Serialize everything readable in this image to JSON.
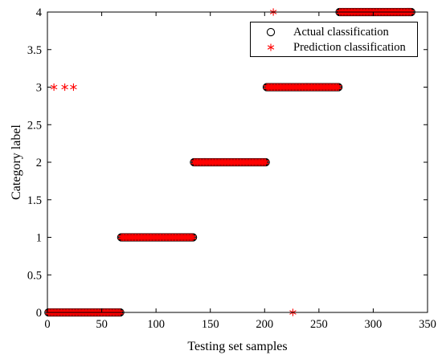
{
  "chart_data": {
    "type": "scatter",
    "title": "",
    "xlabel": "Testing set samples",
    "ylabel": "Category label",
    "xlim": [
      0,
      350
    ],
    "ylim": [
      0,
      4
    ],
    "xticks": [
      "0",
      "50",
      "100",
      "150",
      "200",
      "250",
      "300",
      "350"
    ],
    "yticks": [
      "0",
      "0.5",
      "1",
      "1.5",
      "2",
      "2.5",
      "3",
      "3.5",
      "4"
    ],
    "grid": false,
    "legend_position": "top-right",
    "series": [
      {
        "name": "Actual classification",
        "marker": "circle",
        "color": "#000000",
        "segments": [
          {
            "x_start": 1,
            "x_end": 67,
            "y": 0
          },
          {
            "x_start": 68,
            "x_end": 134,
            "y": 1
          },
          {
            "x_start": 135,
            "x_end": 201,
            "y": 2
          },
          {
            "x_start": 202,
            "x_end": 268,
            "y": 3
          },
          {
            "x_start": 269,
            "x_end": 335,
            "y": 4
          }
        ]
      },
      {
        "name": "Prediction classification",
        "marker": "asterisk",
        "color": "#ff0000",
        "segments": [
          {
            "x_start": 1,
            "x_end": 67,
            "y": 0
          },
          {
            "x_start": 68,
            "x_end": 134,
            "y": 1
          },
          {
            "x_start": 135,
            "x_end": 201,
            "y": 2
          },
          {
            "x_start": 202,
            "x_end": 268,
            "y": 3
          },
          {
            "x_start": 269,
            "x_end": 335,
            "y": 4
          }
        ],
        "outliers": [
          {
            "x": 6,
            "y": 3
          },
          {
            "x": 16,
            "y": 3
          },
          {
            "x": 24,
            "y": 3
          },
          {
            "x": 208,
            "y": 4
          },
          {
            "x": 226,
            "y": 0
          }
        ]
      }
    ]
  },
  "legend": {
    "actual_label": "Actual classification",
    "prediction_label": "Prediction classification"
  },
  "colors": {
    "actual_marker": "#000000",
    "prediction_marker": "#ff0000",
    "axes": "#000000"
  }
}
